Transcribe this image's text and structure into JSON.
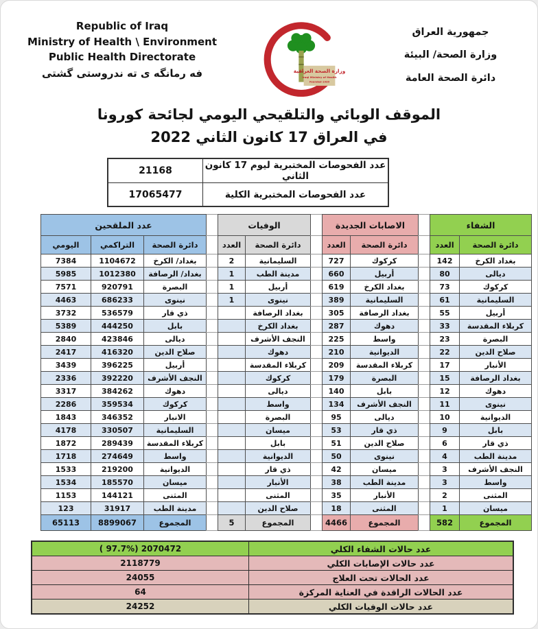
{
  "header": {
    "english": [
      "Republic of Iraq",
      "Ministry of Health \\ Environment",
      "Public Health Directorate"
    ],
    "kurdish": "فه رمانگه ی ته ندروستی گشتی",
    "arabic": [
      "جمهورية العراق",
      "وزارة الصحة/ البيئة",
      "دائرة الصحة العامة"
    ],
    "logo": {
      "arabic": "وزارة الصحة العراقية",
      "english": "Iraqi Ministry of Health",
      "founded": "Founded 1920",
      "crescent_color": "#c2272d",
      "tree_color": "#1f8f1f",
      "box_color": "#d8c9a0"
    }
  },
  "title": {
    "line1": "الموقف الوبائي والتلقيحي اليومي لجائحة كورونا",
    "line2": "في العراق  17  كانون الثاني 2022"
  },
  "tests_table": {
    "rows": [
      {
        "label": "عدد الفحوصات المختبرية  ليوم 17  كانون الثاني",
        "value": "21168"
      },
      {
        "label": "عدد الفحوصات المختبرية الكلية",
        "value": "17065477"
      }
    ]
  },
  "main_table": {
    "stripe_color": "#d9e5f2",
    "health_directorate_header": "دائرة الصحة",
    "sections": [
      {
        "id": "recovery",
        "title": "الشفاء",
        "color": "#92d050",
        "columns": [
          "دائرة الصحة",
          "العدد"
        ],
        "rows": [
          [
            "بغداد الكرخ",
            "142"
          ],
          [
            "ديالى",
            "80"
          ],
          [
            "كركوك",
            "73"
          ],
          [
            "السليمانية",
            "61"
          ],
          [
            "أربيل",
            "55"
          ],
          [
            "كربلاء المقدسة",
            "33"
          ],
          [
            "البصرة",
            "23"
          ],
          [
            "صلاح الدين",
            "22"
          ],
          [
            "الأنبار",
            "17"
          ],
          [
            "بغداد الرصافة",
            "15"
          ],
          [
            "دهوك",
            "12"
          ],
          [
            "نينوى",
            "11"
          ],
          [
            "الديوانية",
            "10"
          ],
          [
            "بابل",
            "9"
          ],
          [
            "ذي قار",
            "6"
          ],
          [
            "مدينة الطب",
            "4"
          ],
          [
            "النجف الأشرف",
            "3"
          ],
          [
            "واسط",
            "3"
          ],
          [
            "المثنى",
            "2"
          ],
          [
            "ميسان",
            "1"
          ]
        ],
        "total": [
          "المجموع",
          "582"
        ]
      },
      {
        "id": "new-infections",
        "title": "الاصابات الجديدة",
        "color": "#e8acac",
        "columns": [
          "دائرة الصحة",
          "العدد"
        ],
        "rows": [
          [
            "كركوك",
            "727"
          ],
          [
            "أربيل",
            "660"
          ],
          [
            "بغداد الكرخ",
            "619"
          ],
          [
            "السليمانية",
            "389"
          ],
          [
            "بغداد الرصافة",
            "305"
          ],
          [
            "دهوك",
            "287"
          ],
          [
            "واسط",
            "225"
          ],
          [
            "الديوانية",
            "210"
          ],
          [
            "كربلاء المقدسة",
            "209"
          ],
          [
            "البصرة",
            "179"
          ],
          [
            "بابل",
            "140"
          ],
          [
            "النجف الأشرف",
            "134"
          ],
          [
            "ديالى",
            "95"
          ],
          [
            "ذي قار",
            "53"
          ],
          [
            "صلاح الدين",
            "51"
          ],
          [
            "نينوى",
            "50"
          ],
          [
            "ميسان",
            "42"
          ],
          [
            "مدينة الطب",
            "38"
          ],
          [
            "الأنبار",
            "35"
          ],
          [
            "المثنى",
            "18"
          ]
        ],
        "total": [
          "المجموع",
          "4466"
        ]
      },
      {
        "id": "deaths",
        "title": "الوفيات",
        "color": "#d9d9d9",
        "columns": [
          "دائرة الصحة",
          "العدد"
        ],
        "rows": [
          [
            "السليمانية",
            "2"
          ],
          [
            "مدينة الطب",
            "1"
          ],
          [
            "أربيل",
            "1"
          ],
          [
            "نينوى",
            "1"
          ],
          [
            "بغداد الرصافة",
            ""
          ],
          [
            "بغداد الكرخ",
            ""
          ],
          [
            "النجف الأشرف",
            ""
          ],
          [
            "دهوك",
            ""
          ],
          [
            "كربلاء المقدسة",
            ""
          ],
          [
            "كركوك",
            ""
          ],
          [
            "ديالى",
            ""
          ],
          [
            "واسط",
            ""
          ],
          [
            "البصرة",
            ""
          ],
          [
            "ميسان",
            ""
          ],
          [
            "بابل",
            ""
          ],
          [
            "الديوانية",
            ""
          ],
          [
            "ذي قار",
            ""
          ],
          [
            "الأنبار",
            ""
          ],
          [
            "المثنى",
            ""
          ],
          [
            "صلاح الدين",
            ""
          ]
        ],
        "total": [
          "المجموع",
          "5"
        ]
      },
      {
        "id": "vaccinated",
        "title": "عدد الملقحين",
        "color": "#9dc3e6",
        "columns": [
          "دائرة الصحة",
          "التراكمي",
          "اليومي"
        ],
        "rows": [
          [
            "بغداد/ الكرخ",
            "1104672",
            "7384"
          ],
          [
            "بغداد/ الرصافة",
            "1012380",
            "5985"
          ],
          [
            "البصرة",
            "920791",
            "7571"
          ],
          [
            "نينوى",
            "686233",
            "4463"
          ],
          [
            "ذي قار",
            "536579",
            "3732"
          ],
          [
            "بابل",
            "444250",
            "5389"
          ],
          [
            "ديالى",
            "423846",
            "2840"
          ],
          [
            "صلاح الدين",
            "416320",
            "2417"
          ],
          [
            "أربيل",
            "396225",
            "3439"
          ],
          [
            "النجف الأشرف",
            "392220",
            "2336"
          ],
          [
            "دهوك",
            "384262",
            "3317"
          ],
          [
            "كركوك",
            "359534",
            "2286"
          ],
          [
            "الانبار",
            "346352",
            "1843"
          ],
          [
            "السليمانية",
            "330507",
            "4178"
          ],
          [
            "كربلاء المقدسة",
            "289439",
            "1872"
          ],
          [
            "واسط",
            "274649",
            "1718"
          ],
          [
            "الديوانية",
            "219200",
            "1533"
          ],
          [
            "ميسان",
            "185570",
            "1534"
          ],
          [
            "المثنى",
            "144121",
            "1153"
          ],
          [
            "مدينة الطب",
            "31917",
            "123"
          ]
        ],
        "total": [
          "المجموع",
          "8899067",
          "65113"
        ]
      }
    ]
  },
  "summary_table": {
    "rows": [
      {
        "label": "عدد حالات الشفاء الكلي",
        "value": "( 97.7%)  2070472",
        "bg": "#92d050"
      },
      {
        "label": "عدد حالات الإصابات الكلي",
        "value": "2118779",
        "bg": "#e4b9b9"
      },
      {
        "label": "عدد الحالات تحت العلاج",
        "value": "24055",
        "bg": "#e4b9b9"
      },
      {
        "label": "عدد الحالات الراقدة في العناية المركزة",
        "value": "64",
        "bg": "#e4b9b9"
      },
      {
        "label": "عدد حالات الوفيات الكلي",
        "value": "24252",
        "bg": "#d8d2bc"
      }
    ]
  }
}
